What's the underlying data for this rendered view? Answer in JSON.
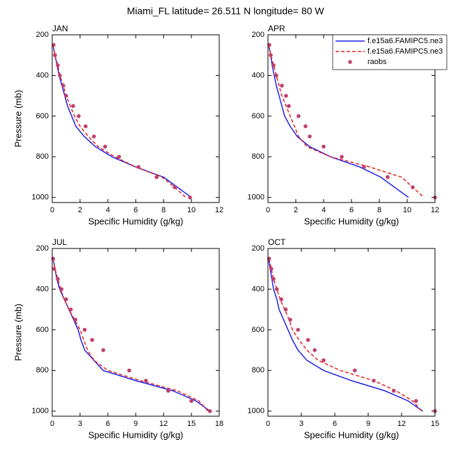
{
  "title": "Miami_FL  latitude= 26.511 N longitude= 80 W",
  "chart_data": [
    {
      "type": "line",
      "label": "JAN",
      "x_label": "Specific Humidity (g/kg)",
      "y_label": "Pressure (mb)",
      "xlim": [
        0,
        12
      ],
      "xticks": [
        0,
        2,
        4,
        6,
        8,
        10,
        12
      ],
      "ylim": [
        1025,
        200
      ],
      "yticks": [
        200,
        400,
        600,
        800,
        1000
      ],
      "series": [
        {
          "color": "#1f1fe6",
          "linestyle": "solid",
          "x": [
            0.05,
            0.2,
            0.35,
            0.5,
            0.7,
            0.9,
            1.1,
            1.4,
            1.7,
            2.3,
            3.1,
            4.3,
            6.0,
            8.0,
            9.0,
            10.0
          ],
          "y": [
            250,
            300,
            350,
            400,
            450,
            500,
            550,
            600,
            650,
            700,
            750,
            800,
            850,
            900,
            950,
            1000
          ]
        },
        {
          "color": "#e61f1f",
          "linestyle": "dashed",
          "x": [
            0.05,
            0.2,
            0.4,
            0.55,
            0.8,
            1.0,
            1.3,
            1.6,
            2.0,
            2.6,
            3.3,
            4.5,
            6.0,
            7.9,
            8.8,
            9.6
          ],
          "y": [
            250,
            300,
            350,
            400,
            450,
            500,
            550,
            600,
            650,
            700,
            750,
            800,
            850,
            900,
            950,
            1000
          ]
        },
        {
          "color": "#c0406e",
          "linestyle": "none",
          "marker": "circle",
          "x": [
            0.1,
            0.2,
            0.4,
            0.55,
            0.8,
            1.0,
            1.5,
            1.9,
            2.4,
            3.0,
            3.8,
            4.8,
            6.2,
            7.5,
            8.8,
            9.9
          ],
          "y": [
            250,
            300,
            350,
            400,
            450,
            500,
            550,
            600,
            650,
            700,
            750,
            800,
            850,
            900,
            950,
            1000
          ]
        }
      ]
    },
    {
      "type": "line",
      "label": "APR",
      "x_label": "Specific Humidity (g/kg)",
      "legend": "upper right",
      "xlim": [
        0,
        12
      ],
      "xticks": [
        0,
        2,
        4,
        6,
        8,
        10,
        12
      ],
      "ylim": [
        1025,
        200
      ],
      "yticks": [
        200,
        400,
        600,
        800,
        1000
      ],
      "series": [
        {
          "name": "f.e15a6.FAMIPC5.ne3",
          "color": "#1f1fe6",
          "linestyle": "solid",
          "x": [
            0.05,
            0.2,
            0.3,
            0.45,
            0.6,
            0.8,
            1.0,
            1.2,
            1.6,
            2.1,
            3.0,
            4.5,
            6.6,
            8.1,
            9.1,
            10.1
          ],
          "y": [
            250,
            300,
            350,
            400,
            450,
            500,
            550,
            600,
            650,
            700,
            750,
            800,
            850,
            900,
            950,
            1000
          ]
        },
        {
          "name": "f.e15a6.FAMIPC5.ne3",
          "color": "#e61f1f",
          "linestyle": "dashed",
          "x": [
            0.05,
            0.2,
            0.4,
            0.6,
            0.8,
            1.0,
            1.3,
            1.6,
            1.9,
            2.2,
            2.8,
            4.5,
            7.3,
            9.6,
            10.4,
            11.2
          ],
          "y": [
            250,
            300,
            350,
            400,
            450,
            500,
            550,
            600,
            650,
            700,
            750,
            800,
            850,
            900,
            950,
            1000
          ]
        },
        {
          "name": "raobs",
          "color": "#c0406e",
          "linestyle": "none",
          "marker": "circle",
          "x": [
            0.1,
            0.2,
            0.4,
            0.6,
            1.0,
            1.3,
            1.5,
            2.2,
            2.7,
            3.0,
            4.0,
            5.3,
            6.9,
            8.6,
            10.4,
            12.0
          ],
          "y": [
            250,
            300,
            350,
            400,
            450,
            500,
            550,
            600,
            650,
            700,
            750,
            800,
            850,
            900,
            950,
            1000
          ]
        }
      ]
    },
    {
      "type": "line",
      "label": "JUL",
      "x_label": "Specific Humidity (g/kg)",
      "y_label": "Pressure (mb)",
      "xlim": [
        0,
        18
      ],
      "xticks": [
        0,
        3,
        6,
        9,
        12,
        15,
        18
      ],
      "ylim": [
        1025,
        200
      ],
      "yticks": [
        200,
        400,
        600,
        800,
        1000
      ],
      "series": [
        {
          "color": "#1f1fe6",
          "linestyle": "solid",
          "x": [
            0.1,
            0.3,
            0.5,
            0.8,
            1.3,
            1.8,
            2.3,
            2.8,
            3.1,
            3.5,
            4.5,
            5.5,
            9.0,
            13.0,
            15.5,
            17.0
          ],
          "y": [
            250,
            300,
            350,
            400,
            450,
            500,
            550,
            600,
            650,
            700,
            750,
            800,
            850,
            900,
            950,
            1000
          ]
        },
        {
          "color": "#e61f1f",
          "linestyle": "dashed",
          "x": [
            0.1,
            0.3,
            0.6,
            0.9,
            1.3,
            1.8,
            2.4,
            3.0,
            3.4,
            3.8,
            4.5,
            6.0,
            9.5,
            13.5,
            15.8,
            16.8
          ],
          "y": [
            250,
            300,
            350,
            400,
            450,
            500,
            550,
            600,
            650,
            700,
            750,
            800,
            850,
            900,
            950,
            1000
          ]
        },
        {
          "color": "#c0406e",
          "linestyle": "none",
          "marker": "circle",
          "x": [
            0.1,
            0.2,
            0.6,
            1.0,
            1.5,
            2.0,
            2.5,
            3.5,
            4.3,
            5.5,
            8.3,
            10.1,
            12.5,
            15.0,
            17.0
          ],
          "y": [
            250,
            300,
            350,
            400,
            450,
            500,
            550,
            600,
            650,
            700,
            800,
            850,
            900,
            950,
            1000
          ]
        }
      ]
    },
    {
      "type": "line",
      "label": "OCT",
      "x_label": "Specific Humidity (g/kg)",
      "xlim": [
        0,
        15
      ],
      "xticks": [
        0,
        3,
        6,
        9,
        12,
        15
      ],
      "ylim": [
        1025,
        200
      ],
      "yticks": [
        200,
        400,
        600,
        800,
        1000
      ],
      "series": [
        {
          "color": "#1f1fe6",
          "linestyle": "solid",
          "x": [
            0.05,
            0.2,
            0.35,
            0.5,
            0.8,
            1.0,
            1.4,
            1.8,
            2.2,
            2.7,
            3.5,
            5.0,
            7.5,
            10.5,
            12.6,
            13.9
          ],
          "y": [
            250,
            300,
            350,
            400,
            450,
            500,
            550,
            600,
            650,
            700,
            750,
            800,
            850,
            900,
            950,
            1000
          ]
        },
        {
          "color": "#e61f1f",
          "linestyle": "dashed",
          "x": [
            0.1,
            0.3,
            0.5,
            0.8,
            1.1,
            1.5,
            1.9,
            2.2,
            2.8,
            3.5,
            4.5,
            6.5,
            9.5,
            11.5,
            13.0,
            13.8
          ],
          "y": [
            250,
            300,
            350,
            400,
            450,
            500,
            550,
            600,
            650,
            700,
            750,
            800,
            850,
            900,
            950,
            1000
          ]
        },
        {
          "color": "#c0406e",
          "linestyle": "none",
          "marker": "circle",
          "x": [
            0.1,
            0.3,
            0.5,
            0.8,
            1.2,
            1.6,
            2.0,
            2.7,
            3.6,
            4.2,
            5.0,
            7.8,
            9.5,
            11.3,
            13.3,
            15.0
          ],
          "y": [
            250,
            300,
            350,
            400,
            450,
            500,
            550,
            600,
            650,
            700,
            750,
            800,
            850,
            900,
            950,
            1000
          ]
        }
      ]
    }
  ]
}
